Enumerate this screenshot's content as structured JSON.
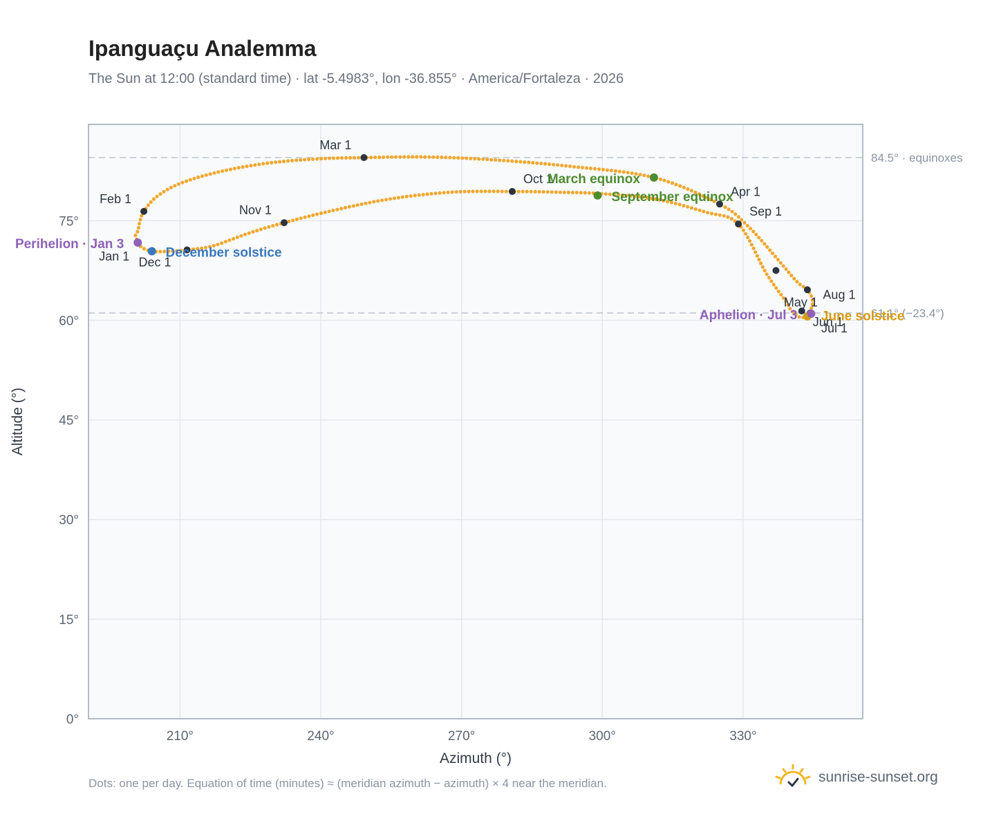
{
  "header": {
    "title": "Ipanguaçu Analemma",
    "subtitle": "The Sun at 12:00 (standard time) · lat -5.4983°, lon -36.855° · America/Fortaleza · 2026"
  },
  "footer": {
    "note": "Dots: one per day. Equation of time (minutes) ≈ (meridian azimuth − azimuth) × 4 near the meridian.",
    "brand": "sunrise-sunset.org"
  },
  "chart_data": {
    "type": "scatter",
    "xlabel": "Azimuth (°)",
    "ylabel": "Altitude (°)",
    "xlim": [
      190.5,
      355.5
    ],
    "ylim": [
      0,
      89.5
    ],
    "xticks": [
      210,
      240,
      270,
      300,
      330
    ],
    "xtick_labels": [
      "210°",
      "240°",
      "270°",
      "300°",
      "330°"
    ],
    "yticks": [
      0,
      15,
      30,
      45,
      60,
      75
    ],
    "ytick_labels": [
      "0°",
      "15°",
      "30°",
      "45°",
      "60°",
      "75°"
    ],
    "grid": true,
    "reference_lines": [
      {
        "y": 84.5,
        "label": "84.5° · equinoxes"
      },
      {
        "y": 61.1,
        "label": "61.1° (−23.4°)"
      }
    ],
    "series": [
      {
        "color": "#f0a830",
        "anchors": [
          {
            "x": 200.5,
            "y": 72.8
          },
          {
            "x": 201.0,
            "y": 73.4
          },
          {
            "x": 201.5,
            "y": 75.0
          },
          {
            "x": 202.3,
            "y": 76.4
          },
          {
            "x": 205.0,
            "y": 78.6
          },
          {
            "x": 210.0,
            "y": 80.6
          },
          {
            "x": 218.0,
            "y": 82.3
          },
          {
            "x": 228.0,
            "y": 83.6
          },
          {
            "x": 239.0,
            "y": 84.3
          },
          {
            "x": 249.2,
            "y": 84.5
          },
          {
            "x": 262.0,
            "y": 84.6
          },
          {
            "x": 276.0,
            "y": 84.2
          },
          {
            "x": 293.0,
            "y": 83.2
          },
          {
            "x": 311.0,
            "y": 81.5
          },
          {
            "x": 325.0,
            "y": 77.5
          },
          {
            "x": 331.0,
            "y": 74.2
          },
          {
            "x": 337.0,
            "y": 69.5
          },
          {
            "x": 341.5,
            "y": 65.8
          },
          {
            "x": 343.7,
            "y": 64.6
          },
          {
            "x": 344.8,
            "y": 63.0
          },
          {
            "x": 344.3,
            "y": 61.5
          },
          {
            "x": 342.5,
            "y": 60.4
          },
          {
            "x": 340.3,
            "y": 61.5
          },
          {
            "x": 339.0,
            "y": 63.0
          },
          {
            "x": 335.0,
            "y": 67.0
          },
          {
            "x": 329.0,
            "y": 74.5
          },
          {
            "x": 322.0,
            "y": 76.3
          },
          {
            "x": 311.0,
            "y": 78.3
          },
          {
            "x": 299.0,
            "y": 79.1
          },
          {
            "x": 290.0,
            "y": 79.3
          },
          {
            "x": 280.8,
            "y": 79.4
          },
          {
            "x": 268.0,
            "y": 79.3
          },
          {
            "x": 255.0,
            "y": 78.3
          },
          {
            "x": 243.0,
            "y": 76.6
          },
          {
            "x": 232.2,
            "y": 74.7
          },
          {
            "x": 225.0,
            "y": 73.2
          },
          {
            "x": 217.0,
            "y": 71.2
          },
          {
            "x": 211.5,
            "y": 70.6
          },
          {
            "x": 208.0,
            "y": 70.4
          },
          {
            "x": 204.0,
            "y": 70.4
          },
          {
            "x": 201.5,
            "y": 71.2
          },
          {
            "x": 200.5,
            "y": 72.8
          }
        ]
      }
    ],
    "month_markers": [
      {
        "label": "Jan 1",
        "x": 201.0,
        "y": 71.7
      },
      {
        "label": "Feb 1",
        "x": 202.3,
        "y": 76.4
      },
      {
        "label": "Mar 1",
        "x": 249.2,
        "y": 84.5
      },
      {
        "label": "Apr 1",
        "x": 325.0,
        "y": 77.5
      },
      {
        "label": "May 1",
        "x": 343.7,
        "y": 64.6
      },
      {
        "label": "Jun 1",
        "x": 342.5,
        "y": 61.4
      },
      {
        "label": "Jul 1",
        "x": 344.3,
        "y": 61.1
      },
      {
        "label": "Aug 1",
        "x": 337.0,
        "y": 67.5
      },
      {
        "label": "Sep 1",
        "x": 329.0,
        "y": 74.5
      },
      {
        "label": "Oct 1",
        "x": 280.8,
        "y": 79.4
      },
      {
        "label": "Nov 1",
        "x": 232.2,
        "y": 74.7
      },
      {
        "label": "Dec 1",
        "x": 211.5,
        "y": 70.6
      }
    ],
    "events": [
      {
        "label": "March equinox",
        "x": 311.0,
        "y": 81.5,
        "color": "#4e8c30"
      },
      {
        "label": "September equinox",
        "x": 299.0,
        "y": 78.8,
        "color": "#4e8c30"
      },
      {
        "label": "June solstice",
        "x": 343.7,
        "y": 60.6,
        "color": "#d99a12"
      },
      {
        "label": "December solstice",
        "x": 204.0,
        "y": 70.4,
        "color": "#3a78bd"
      },
      {
        "label": "Perihelion · Jan 3",
        "x": 201.0,
        "y": 71.7,
        "color": "#8e62b8"
      },
      {
        "label": "Aphelion · Jul 3",
        "x": 344.5,
        "y": 61.0,
        "color": "#8e62b8"
      }
    ]
  }
}
